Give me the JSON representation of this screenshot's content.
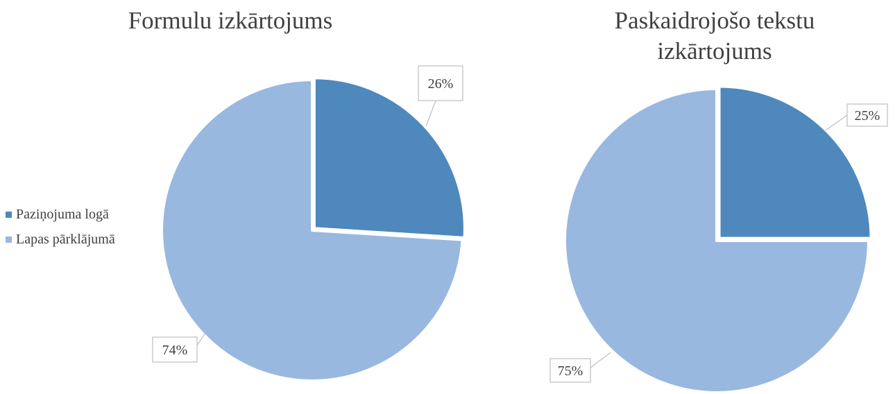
{
  "chart_data": [
    {
      "type": "pie",
      "title": "Formulu izkārtojums",
      "categories": [
        "Paziņojuma logā",
        "Lapas pārklājumā"
      ],
      "values": [
        26,
        74
      ],
      "labels": [
        "26%",
        "74%"
      ],
      "colors": [
        "#4f88bc",
        "#98b8df"
      ],
      "legend": "left"
    },
    {
      "type": "pie",
      "title": "Paskaidrojošo tekstu izkārtojums",
      "categories": [
        "Paziņojuma logā",
        "Lapas pārklājumā"
      ],
      "values": [
        25,
        75
      ],
      "labels": [
        "25%",
        "75%"
      ],
      "colors": [
        "#4f88bc",
        "#98b8df"
      ]
    }
  ],
  "legend": {
    "items": [
      {
        "label": "Paziņojuma logā",
        "color": "#4f88bc"
      },
      {
        "label": "Lapas pārklājumā",
        "color": "#98b8df"
      }
    ]
  }
}
